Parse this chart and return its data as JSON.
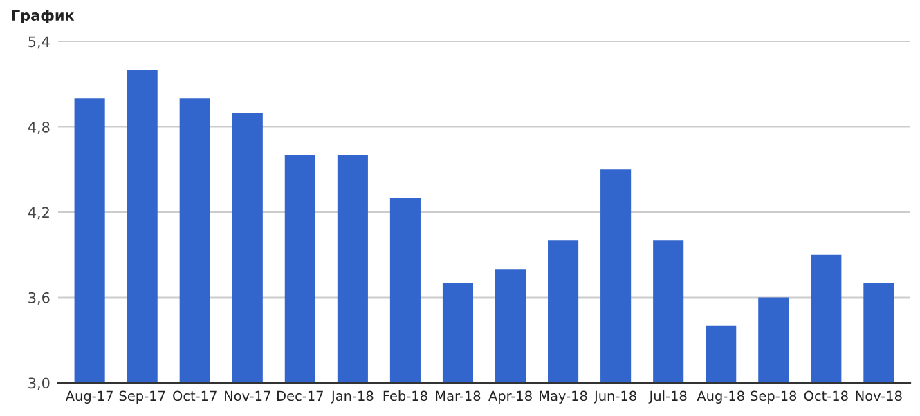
{
  "chart_data": {
    "type": "bar",
    "title": "График",
    "categories": [
      "Aug-17",
      "Sep-17",
      "Oct-17",
      "Nov-17",
      "Dec-17",
      "Jan-18",
      "Feb-18",
      "Mar-18",
      "Apr-18",
      "May-18",
      "Jun-18",
      "Jul-18",
      "Aug-18",
      "Sep-18",
      "Oct-18",
      "Nov-18"
    ],
    "values": [
      5.0,
      5.2,
      5.0,
      4.9,
      4.6,
      4.6,
      4.3,
      3.7,
      3.8,
      4.0,
      4.5,
      4.0,
      3.4,
      3.6,
      3.9,
      3.7
    ],
    "color": "#3366cc",
    "ylim": [
      3.0,
      5.4
    ],
    "yticks": [
      {
        "value": 3.0,
        "label": "3,0"
      },
      {
        "value": 3.6,
        "label": "3,6"
      },
      {
        "value": 4.2,
        "label": "4,2"
      },
      {
        "value": 4.8,
        "label": "4,8"
      },
      {
        "value": 5.4,
        "label": "5,4"
      }
    ],
    "grid": "y",
    "legend": false
  }
}
